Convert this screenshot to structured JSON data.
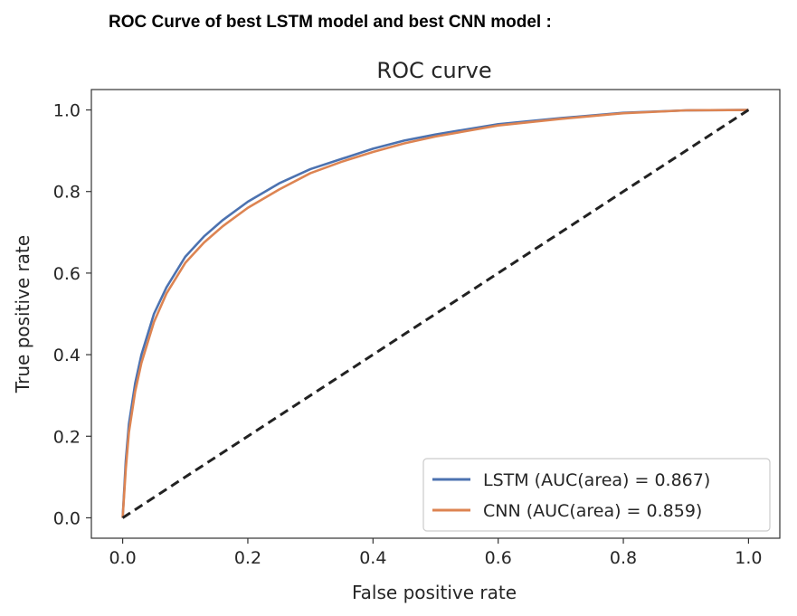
{
  "caption": "ROC Curve of best LSTM model and best CNN model :",
  "chart_data": {
    "type": "line",
    "title": "ROC curve",
    "xlabel": "False positive rate",
    "ylabel": "True positive rate",
    "xlim": [
      -0.05,
      1.05
    ],
    "ylim": [
      -0.05,
      1.05
    ],
    "xticks": [
      "0.0",
      "0.2",
      "0.4",
      "0.6",
      "0.8",
      "1.0"
    ],
    "yticks": [
      "0.0",
      "0.2",
      "0.4",
      "0.6",
      "0.8",
      "1.0"
    ],
    "grid": false,
    "legend_position": "lower-right",
    "series": [
      {
        "name": "LSTM (AUC(area) = 0.867)",
        "color": "#4c72b0",
        "x": [
          0,
          0.005,
          0.01,
          0.02,
          0.03,
          0.05,
          0.07,
          0.1,
          0.13,
          0.16,
          0.2,
          0.25,
          0.3,
          0.35,
          0.4,
          0.45,
          0.5,
          0.6,
          0.7,
          0.8,
          0.9,
          1.0
        ],
        "y": [
          0,
          0.14,
          0.23,
          0.33,
          0.4,
          0.5,
          0.565,
          0.64,
          0.69,
          0.73,
          0.775,
          0.82,
          0.855,
          0.88,
          0.905,
          0.925,
          0.94,
          0.965,
          0.98,
          0.993,
          0.999,
          1.0
        ]
      },
      {
        "name": "CNN (AUC(area) = 0.859)",
        "color": "#dd8452",
        "x": [
          0,
          0.005,
          0.01,
          0.02,
          0.03,
          0.05,
          0.07,
          0.1,
          0.13,
          0.16,
          0.2,
          0.25,
          0.3,
          0.35,
          0.4,
          0.45,
          0.5,
          0.6,
          0.7,
          0.8,
          0.9,
          1.0
        ],
        "y": [
          0,
          0.12,
          0.21,
          0.31,
          0.38,
          0.48,
          0.55,
          0.625,
          0.675,
          0.715,
          0.76,
          0.805,
          0.845,
          0.873,
          0.897,
          0.918,
          0.935,
          0.962,
          0.978,
          0.992,
          0.999,
          1.0
        ]
      },
      {
        "name": "",
        "color": "#222222",
        "dashed": true,
        "x": [
          0,
          1
        ],
        "y": [
          0,
          1
        ]
      }
    ]
  }
}
